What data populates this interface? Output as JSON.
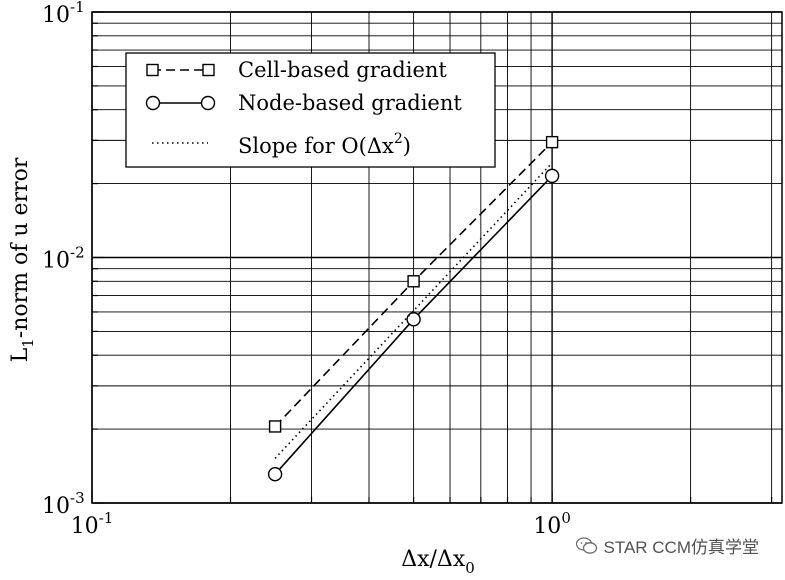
{
  "chart_data": {
    "type": "line",
    "x_scale": "log",
    "y_scale": "log",
    "xlim": [
      0.1,
      3.16
    ],
    "ylim": [
      0.001,
      0.1
    ],
    "grid": true,
    "legend_position": "top-left",
    "xlabel": "Δx/Δx",
    "xlabel_sub": "0",
    "ylabel_main": "L",
    "ylabel_sub": "1",
    "ylabel_rest": "-norm of u error",
    "xticks": [
      {
        "value": 0.1,
        "base": "10",
        "exp": "-1"
      },
      {
        "value": 1.0,
        "base": "10",
        "exp": "0"
      }
    ],
    "yticks": [
      {
        "value": 0.1,
        "base": "10",
        "exp": "-1"
      },
      {
        "value": 0.01,
        "base": "10",
        "exp": "-2"
      },
      {
        "value": 0.001,
        "base": "10",
        "exp": "-3"
      }
    ],
    "series": [
      {
        "name": "Cell-based gradient",
        "style": "dashed",
        "marker": "square",
        "x": [
          0.25,
          0.5,
          1.0
        ],
        "y": [
          0.00205,
          0.008,
          0.0295
        ]
      },
      {
        "name": "Node-based gradient",
        "style": "solid",
        "marker": "circle",
        "x": [
          0.25,
          0.5,
          1.0
        ],
        "y": [
          0.00131,
          0.0056,
          0.0215
        ]
      },
      {
        "name": "Slope for O(Δx",
        "name_sup": "2",
        "name_tail": ")",
        "style": "dotted",
        "marker": "none",
        "x": [
          0.25,
          1.0
        ],
        "y": [
          0.00152,
          0.0243
        ]
      }
    ]
  },
  "watermark": {
    "text": "STAR CCM仿真学堂",
    "icon": "wechat-icon"
  }
}
